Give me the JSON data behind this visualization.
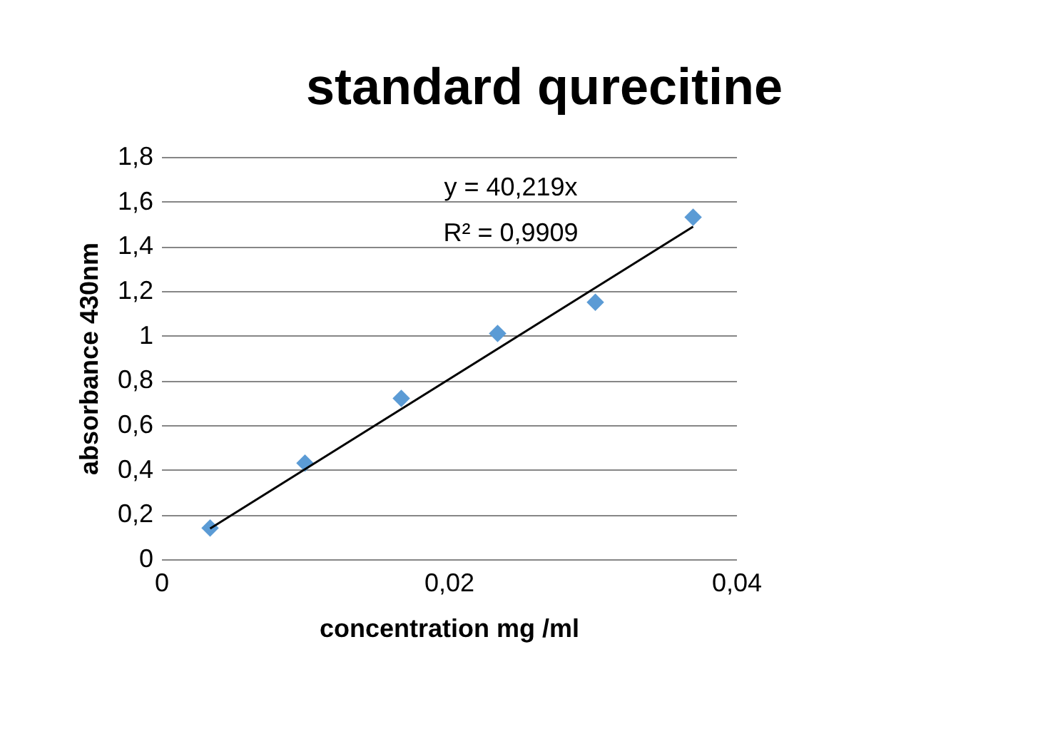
{
  "chart_data": {
    "type": "scatter",
    "title": "standard qurecitine",
    "xlabel": "concentration mg /ml",
    "ylabel": "absorbance 430nm",
    "annotations": [
      "y = 40,219x",
      "R² = 0,9909"
    ],
    "series": [
      {
        "type": "scatter",
        "color": "#5b9bd5",
        "marker": "diamond",
        "x": [
          0.0034,
          0.01,
          0.0167,
          0.0234,
          0.0302,
          0.037
        ],
        "values": [
          0.14,
          0.43,
          0.72,
          1.01,
          1.15,
          1.53
        ]
      },
      {
        "type": "line",
        "color": "#000000",
        "x": [
          0.0034,
          0.037
        ],
        "values": [
          0.137,
          1.488
        ]
      }
    ],
    "xlim": [
      0,
      0.04
    ],
    "xticks": [
      0,
      {
        "value": 0.02,
        "label": "0,02"
      },
      {
        "value": 0.04,
        "label": "0,04"
      }
    ],
    "ylim": [
      0,
      1.8
    ],
    "yticks": [
      0,
      {
        "value": 0.2,
        "label": "0,2"
      },
      {
        "value": 0.4,
        "label": "0,4"
      },
      {
        "value": 0.6,
        "label": "0,6"
      },
      {
        "value": 0.8,
        "label": "0,8"
      },
      1,
      {
        "value": 1.2,
        "label": "1,2"
      },
      {
        "value": 1.4,
        "label": "1,4"
      },
      {
        "value": 1.6,
        "label": "1,6"
      },
      {
        "value": 1.8,
        "label": "1,8"
      }
    ],
    "grid": "y"
  }
}
